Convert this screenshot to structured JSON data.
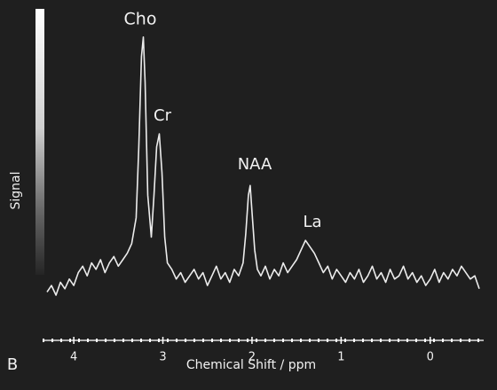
{
  "chart_data": {
    "type": "line",
    "panel_label": "B",
    "x_label": "Chemical Shift / ppm",
    "y_label": "Signal",
    "annotations": [
      "Cho",
      "Cr",
      "NAA",
      "La"
    ],
    "color": "#ececec",
    "xlim": [
      4.35,
      -0.6
    ],
    "xticks": [
      4,
      3,
      2,
      1,
      0
    ],
    "ylim": [
      0,
      100
    ],
    "x": [
      4.3,
      4.25,
      4.2,
      4.15,
      4.1,
      4.05,
      4.0,
      3.95,
      3.9,
      3.85,
      3.8,
      3.75,
      3.7,
      3.65,
      3.6,
      3.55,
      3.5,
      3.45,
      3.4,
      3.35,
      3.3,
      3.27,
      3.24,
      3.22,
      3.2,
      3.17,
      3.13,
      3.1,
      3.07,
      3.04,
      3.01,
      2.98,
      2.95,
      2.9,
      2.85,
      2.8,
      2.75,
      2.7,
      2.65,
      2.6,
      2.55,
      2.5,
      2.45,
      2.4,
      2.35,
      2.3,
      2.25,
      2.2,
      2.15,
      2.1,
      2.07,
      2.04,
      2.02,
      2.0,
      1.97,
      1.94,
      1.9,
      1.85,
      1.8,
      1.75,
      1.7,
      1.65,
      1.6,
      1.55,
      1.5,
      1.45,
      1.4,
      1.35,
      1.3,
      1.25,
      1.2,
      1.15,
      1.1,
      1.05,
      1.0,
      0.95,
      0.9,
      0.85,
      0.8,
      0.75,
      0.7,
      0.65,
      0.6,
      0.55,
      0.5,
      0.45,
      0.4,
      0.35,
      0.3,
      0.25,
      0.2,
      0.15,
      0.1,
      0.05,
      0.0,
      -0.05,
      -0.1,
      -0.15,
      -0.2,
      -0.25,
      -0.3,
      -0.35,
      -0.4,
      -0.45,
      -0.5,
      -0.55
    ],
    "values": [
      15,
      17,
      14,
      18,
      16,
      19,
      17,
      21,
      23,
      20,
      24,
      22,
      25,
      21,
      24,
      26,
      23,
      25,
      27,
      30,
      38,
      60,
      88,
      94,
      80,
      45,
      32,
      45,
      60,
      64,
      52,
      32,
      24,
      22,
      19,
      21,
      18,
      20,
      22,
      19,
      21,
      17,
      20,
      23,
      19,
      21,
      18,
      22,
      20,
      24,
      33,
      45,
      48,
      40,
      28,
      22,
      20,
      23,
      19,
      22,
      20,
      24,
      21,
      23,
      25,
      28,
      31,
      29,
      27,
      24,
      21,
      23,
      19,
      22,
      20,
      18,
      21,
      19,
      22,
      18,
      20,
      23,
      19,
      21,
      18,
      22,
      19,
      20,
      23,
      19,
      21,
      18,
      20,
      17,
      19,
      22,
      18,
      21,
      19,
      22,
      20,
      23,
      21,
      19,
      20,
      16
    ]
  }
}
